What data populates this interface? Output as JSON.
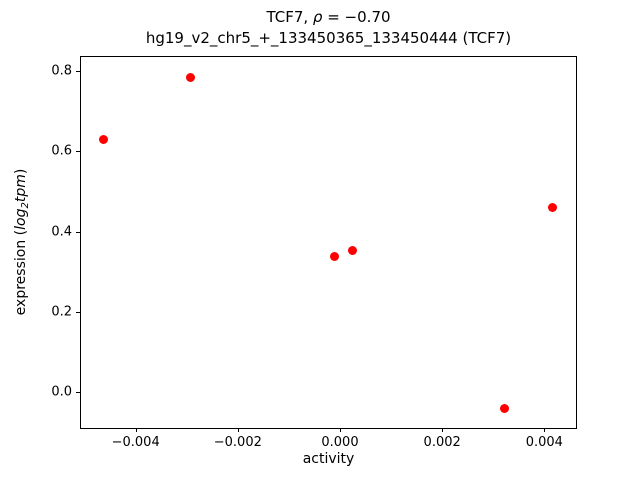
{
  "figure": {
    "title_line1": {
      "pre": "TCF7, ",
      "symbol": "ρ",
      "post": " = −0.70"
    },
    "title_line2": "hg19_v2_chr5_+_133450365_133450444 (TCF7)",
    "xlabel": "activity",
    "ylabel": {
      "pre": "expression (",
      "math_main": "log",
      "math_sub": "2",
      "math_rest": "tpm",
      "post": ")"
    }
  },
  "chart_data": {
    "type": "scatter",
    "title": "TCF7, ρ = −0.70",
    "subtitle": "hg19_v2_chr5_+_133450365_133450444 (TCF7)",
    "xlabel": "activity",
    "ylabel": "expression (log2tpm)",
    "marker_color": "#ff0000",
    "marker_size_px": 9,
    "grid": false,
    "legend": false,
    "xlim": [
      -0.00507,
      0.00462
    ],
    "ylim": [
      -0.089,
      0.835
    ],
    "x_ticks": [
      {
        "value": -0.004,
        "label": "−0.004"
      },
      {
        "value": -0.002,
        "label": "−0.002"
      },
      {
        "value": 0.0,
        "label": "0.000"
      },
      {
        "value": 0.002,
        "label": "0.002"
      },
      {
        "value": 0.004,
        "label": "0.004"
      }
    ],
    "y_ticks": [
      {
        "value": 0.0,
        "label": "0.0"
      },
      {
        "value": 0.2,
        "label": "0.2"
      },
      {
        "value": 0.4,
        "label": "0.4"
      },
      {
        "value": 0.6,
        "label": "0.6"
      },
      {
        "value": 0.8,
        "label": "0.8"
      }
    ],
    "points": [
      {
        "x": -0.00462,
        "y": 0.63
      },
      {
        "x": -0.00293,
        "y": 0.785
      },
      {
        "x": -0.0001,
        "y": 0.337
      },
      {
        "x": 0.00025,
        "y": 0.352
      },
      {
        "x": 0.00322,
        "y": -0.04
      },
      {
        "x": 0.00416,
        "y": 0.46
      }
    ]
  }
}
